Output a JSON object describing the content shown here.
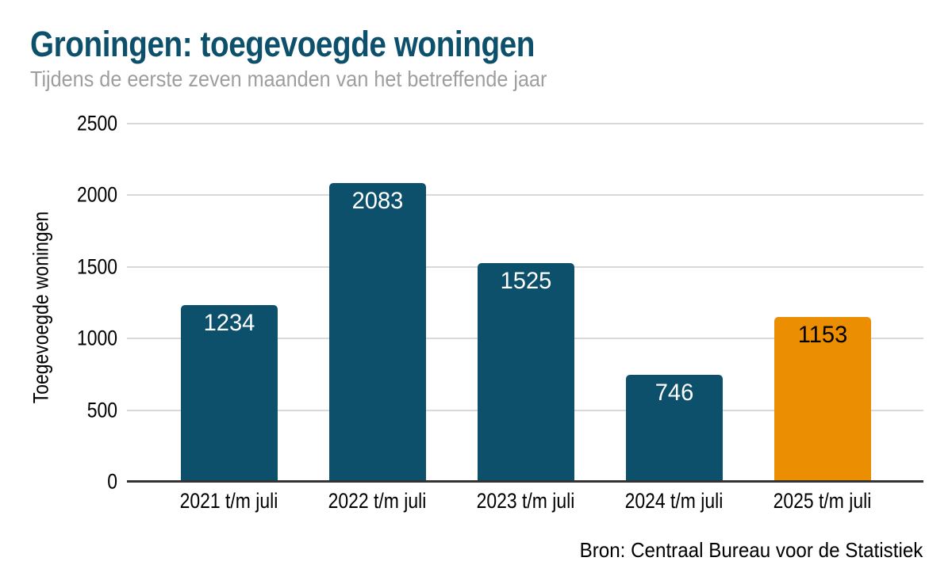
{
  "chart_data": {
    "type": "bar",
    "title": "Groningen: toegevoegde woningen",
    "subtitle": "Tijdens de eerste zeven maanden van het betreffende jaar",
    "ylabel": "Toegevoegde woningen",
    "categories": [
      "2021 t/m juli",
      "2022 t/m juli",
      "2023 t/m juli",
      "2024 t/m juli",
      "2025 t/m juli"
    ],
    "values": [
      1234,
      2083,
      1525,
      746,
      1153
    ],
    "value_labels": [
      "1234",
      "2083",
      "1525",
      "746",
      "1153"
    ],
    "bar_colors": [
      "#0d506b",
      "#0d506b",
      "#0d506b",
      "#0d506b",
      "#ec8e01"
    ],
    "value_label_colors": [
      "#ffffff",
      "#ffffff",
      "#ffffff",
      "#ffffff",
      "#000000"
    ],
    "ylim": [
      0,
      2500
    ],
    "yticks": [
      0,
      500,
      1000,
      1500,
      2000,
      2500
    ],
    "grid": true,
    "legend": "none",
    "source": "Bron: Centraal Bureau voor de Statistiek"
  },
  "colors": {
    "title": "#0d506b",
    "subtitle": "#9e9e9e",
    "bar_default": "#0d506b",
    "bar_highlight": "#ec8e01",
    "gridline": "#d9d9d9",
    "axis_line": "#333333",
    "background": "#ffffff",
    "tick_text": "#000000"
  }
}
